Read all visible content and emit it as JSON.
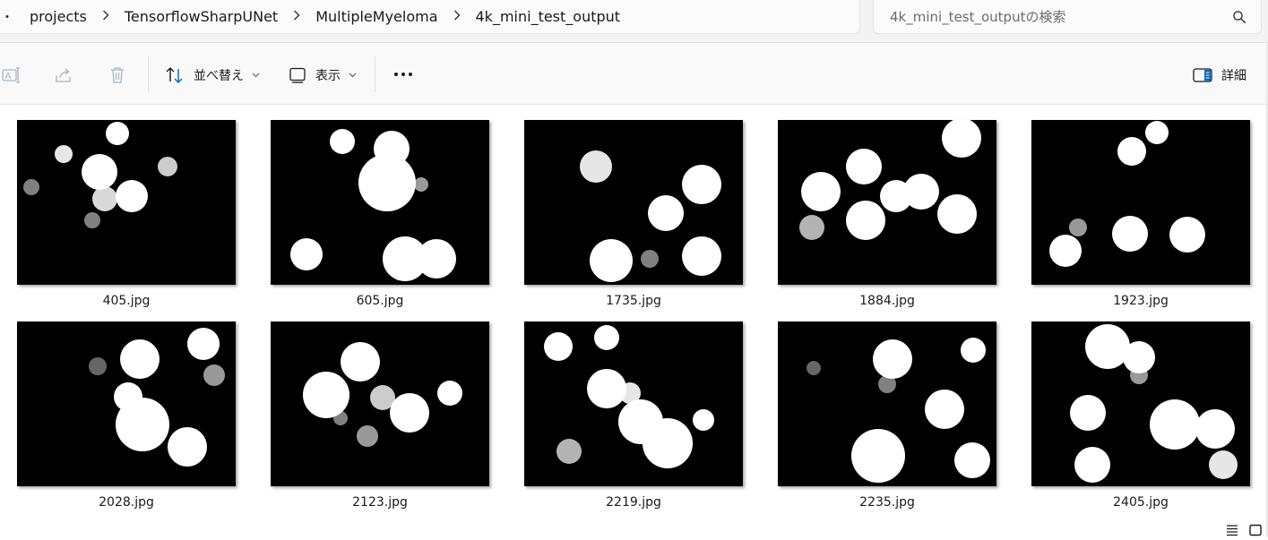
{
  "breadcrumb": {
    "lead": "・",
    "items": [
      "projects",
      "TensorflowSharpUNet",
      "MultipleMyeloma",
      "4k_mini_test_output"
    ]
  },
  "search": {
    "placeholder": "4k_mini_test_outputの検索"
  },
  "toolbar": {
    "sort_label": "並べ替え",
    "view_label": "表示",
    "more_label": "•••",
    "details_label": "詳細"
  },
  "files": [
    {
      "name": "405.jpg"
    },
    {
      "name": "605.jpg"
    },
    {
      "name": "1735.jpg"
    },
    {
      "name": "1884.jpg"
    },
    {
      "name": "1923.jpg"
    },
    {
      "name": "2028.jpg"
    },
    {
      "name": "2123.jpg"
    },
    {
      "name": "2219.jpg"
    },
    {
      "name": "2235.jpg"
    },
    {
      "name": "2405.jpg"
    }
  ],
  "colors": {
    "accent": "#0067c0",
    "icon_disabled": "#a7b4c2",
    "thumb_bg": "#000000",
    "blob": "#ffffff"
  }
}
